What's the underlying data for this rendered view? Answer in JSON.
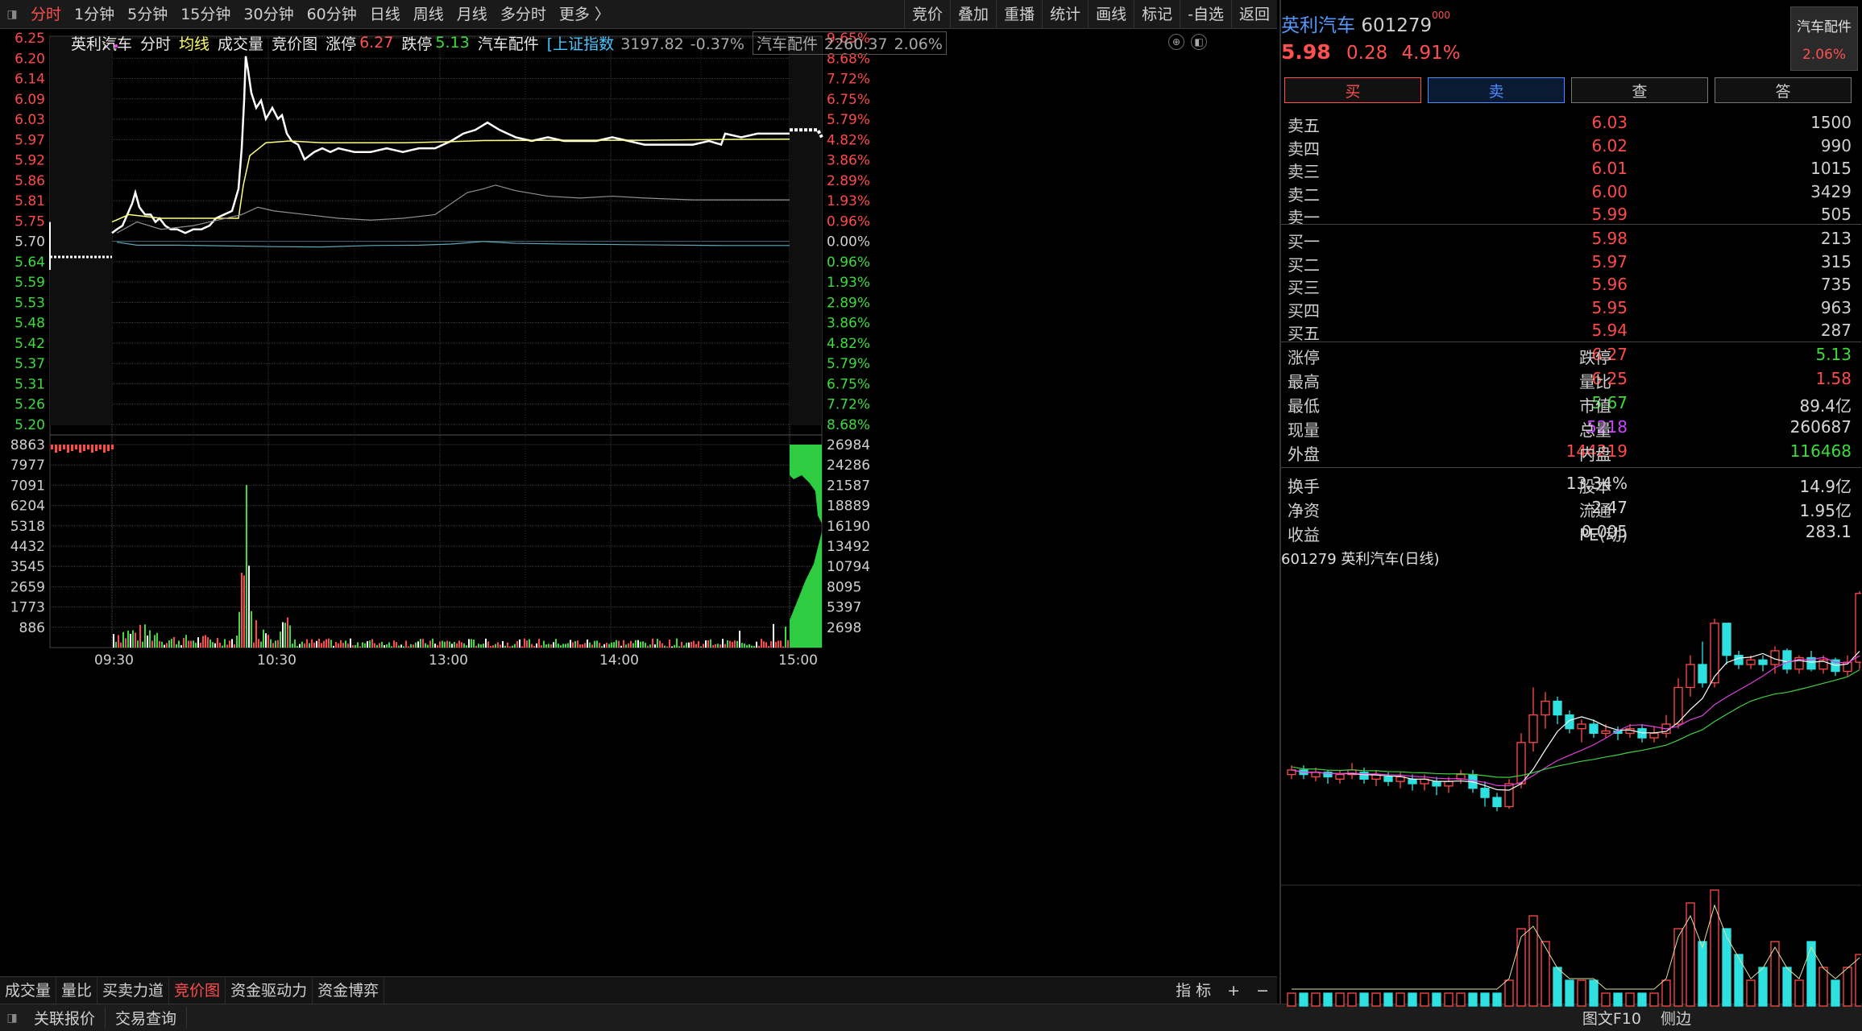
{
  "topbar": {
    "periods": [
      "分时",
      "1分钟",
      "5分钟",
      "15分钟",
      "30分钟",
      "60分钟",
      "日线",
      "周线",
      "月线",
      "多分时",
      "更多 〉"
    ],
    "active_period": "分时",
    "tools": [
      "竞价",
      "叠加",
      "重播",
      "统计",
      "画线",
      "标记",
      "-自选",
      "返回"
    ]
  },
  "chart_header": {
    "name": "英利汽车",
    "tabs": [
      "分时",
      "均线",
      "成交量",
      "竞价图"
    ],
    "limit_up_label": "涨停",
    "limit_up_value": "6.27",
    "limit_down_label": "跌停",
    "limit_down_value": "5.13",
    "sector": "汽车配件",
    "index_label": "上证指数",
    "index_value": "3197.82",
    "index_change": "-0.37%",
    "sector_box_label": "汽车配件",
    "sector_box_value": "2260.37",
    "sector_box_change": "2.06%"
  },
  "price_axis": {
    "left": [
      "6.25",
      "6.20",
      "6.14",
      "6.09",
      "6.03",
      "5.97",
      "5.92",
      "5.86",
      "5.81",
      "5.75",
      "5.70",
      "5.64",
      "5.59",
      "5.53",
      "5.48",
      "5.42",
      "5.37",
      "5.31",
      "5.26",
      "5.20"
    ],
    "right": [
      "9.65%",
      "8.68%",
      "7.72%",
      "6.75%",
      "5.79%",
      "4.82%",
      "3.86%",
      "2.89%",
      "1.93%",
      "0.96%",
      "0.00%",
      "0.96%",
      "1.93%",
      "2.89%",
      "3.86%",
      "4.82%",
      "5.79%",
      "6.75%",
      "7.72%",
      "8.68%"
    ]
  },
  "volume_axis": {
    "left": [
      "8863",
      "7977",
      "7091",
      "6204",
      "5318",
      "4432",
      "3545",
      "2659",
      "1773",
      "886"
    ],
    "right": [
      "26984",
      "24286",
      "21587",
      "18889",
      "16190",
      "13492",
      "10794",
      "8095",
      "5397",
      "2698"
    ]
  },
  "time_axis": [
    "09:30",
    "10:30",
    "13:00",
    "14:00",
    "15:00"
  ],
  "close_mark": "×",
  "bottom_tabs": {
    "tabs": [
      "成交量",
      "量比",
      "买卖力道",
      "竞价图",
      "资金驱动力",
      "资金博弈"
    ],
    "active": "竞价图",
    "right": [
      "指 标",
      "+",
      "−"
    ]
  },
  "status_bar": {
    "items": [
      "关联报价",
      "交易查询"
    ],
    "right": [
      "图文F10",
      "侧边"
    ]
  },
  "quote": {
    "name": "英利汽车",
    "code": "601279",
    "code_suffix": "000",
    "price": "5.98",
    "change": "0.28",
    "change_pct": "4.91%",
    "sector_label": "汽车配件",
    "sector_change": "2.06%",
    "buttons": [
      "买",
      "卖",
      "查",
      "答"
    ]
  },
  "order_book": {
    "asks": [
      {
        "label": "卖五",
        "price": "6.03",
        "vol": "1500"
      },
      {
        "label": "卖四",
        "price": "6.02",
        "vol": "990"
      },
      {
        "label": "卖三",
        "price": "6.01",
        "vol": "1015"
      },
      {
        "label": "卖二",
        "price": "6.00",
        "vol": "3429"
      },
      {
        "label": "卖一",
        "price": "5.99",
        "vol": "505"
      }
    ],
    "bids": [
      {
        "label": "买一",
        "price": "5.98",
        "vol": "213"
      },
      {
        "label": "买二",
        "price": "5.97",
        "vol": "315"
      },
      {
        "label": "买三",
        "price": "5.96",
        "vol": "735"
      },
      {
        "label": "买四",
        "price": "5.95",
        "vol": "963"
      },
      {
        "label": "买五",
        "price": "5.94",
        "vol": "287"
      }
    ]
  },
  "stats": [
    {
      "l1": "涨停",
      "v1": "6.27",
      "c1": "red",
      "l2": "跌停",
      "v2": "5.13",
      "c2": "green"
    },
    {
      "l1": "最高",
      "v1": "6.25",
      "c1": "red",
      "l2": "量比",
      "v2": "1.58",
      "c2": "red"
    },
    {
      "l1": "最低",
      "v1": "5.67",
      "c1": "green",
      "l2": "市值",
      "v2": "89.4亿",
      "c2": "white"
    },
    {
      "l1": "现量",
      "v1": "5218",
      "c1": "magenta",
      "l2": "总量",
      "v2": "260687",
      "c2": "white"
    },
    {
      "l1": "外盘",
      "v1": "144219",
      "c1": "red",
      "l2": "内盘",
      "v2": "116468",
      "c2": "green"
    },
    {
      "l1": "换手",
      "v1": "13.34%",
      "c1": "white",
      "l2": "股本",
      "v2": "14.9亿",
      "c2": "white"
    },
    {
      "l1": "净资",
      "v1": "2.47",
      "c1": "white",
      "l2": "流通",
      "v2": "1.95亿",
      "c2": "white"
    },
    {
      "l1": "收益",
      "v1": "0.005",
      "c1": "white",
      "l2": "PE(动)",
      "v2": "283.1",
      "c2": "white"
    }
  ],
  "kline_title": "601279 英利汽车(日线)",
  "colors": {
    "up": "#ff4a4a",
    "down": "#3cdc3c",
    "avg": "#ffff80",
    "price": "#ffffff",
    "grid": "#3a3a3a"
  }
}
